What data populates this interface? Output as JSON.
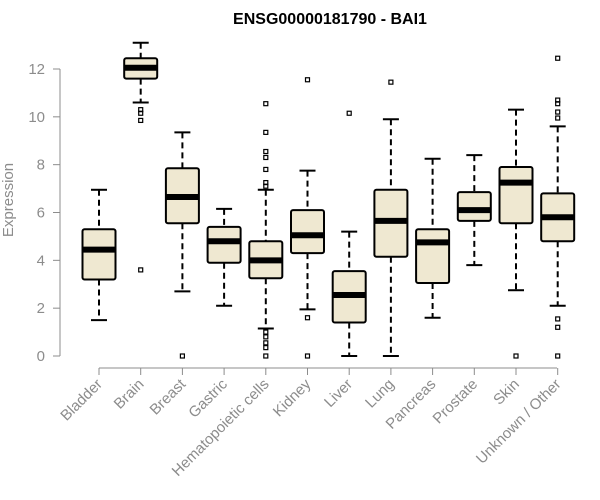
{
  "chart_data": {
    "type": "boxplot",
    "title": "ENSG00000181790 - BAI1",
    "xlabel": "",
    "ylabel": "Expression",
    "ylim": [
      0,
      12.8
    ],
    "yticks": [
      0,
      2,
      4,
      6,
      8,
      10,
      12
    ],
    "categories": [
      "Bladder",
      "Brain",
      "Breast",
      "Gastric",
      "Hematopoietic cells",
      "Kidney",
      "Liver",
      "Lung",
      "Pancreas",
      "Prostate",
      "Skin",
      "Unknown / Other"
    ],
    "boxes": [
      {
        "category": "Bladder",
        "min": 1.5,
        "q1": 3.2,
        "median": 4.45,
        "q3": 5.3,
        "max": 6.95,
        "outliers": []
      },
      {
        "category": "Brain",
        "min": 10.6,
        "q1": 11.6,
        "median": 12.05,
        "q3": 12.45,
        "max": 13.1,
        "outliers": [
          10.3,
          10.15,
          9.85,
          3.6
        ]
      },
      {
        "category": "Breast",
        "min": 2.7,
        "q1": 5.55,
        "median": 6.65,
        "q3": 7.85,
        "max": 9.35,
        "outliers": [
          0.0
        ]
      },
      {
        "category": "Gastric",
        "min": 2.1,
        "q1": 3.9,
        "median": 4.8,
        "q3": 5.4,
        "max": 6.15,
        "outliers": []
      },
      {
        "category": "Hematopoietic cells",
        "min": 1.15,
        "q1": 3.25,
        "median": 4.0,
        "q3": 4.8,
        "max": 6.95,
        "outliers": [
          10.55,
          9.35,
          8.55,
          8.3,
          7.8,
          7.25,
          7.1,
          1.0,
          0.8,
          0.55,
          0.35,
          0.0
        ]
      },
      {
        "category": "Kidney",
        "min": 1.95,
        "q1": 4.3,
        "median": 5.05,
        "q3": 6.1,
        "max": 7.75,
        "outliers": [
          11.55,
          1.6,
          0.0
        ]
      },
      {
        "category": "Liver",
        "min": 0.0,
        "q1": 1.4,
        "median": 2.55,
        "q3": 3.55,
        "max": 5.2,
        "outliers": [
          10.15
        ]
      },
      {
        "category": "Lung",
        "min": 0.0,
        "q1": 4.15,
        "median": 5.65,
        "q3": 6.95,
        "max": 9.9,
        "outliers": [
          11.45
        ]
      },
      {
        "category": "Pancreas",
        "min": 1.6,
        "q1": 3.05,
        "median": 4.75,
        "q3": 5.3,
        "max": 8.25,
        "outliers": []
      },
      {
        "category": "Prostate",
        "min": 3.8,
        "q1": 5.65,
        "median": 6.1,
        "q3": 6.85,
        "max": 8.4,
        "outliers": []
      },
      {
        "category": "Skin",
        "min": 2.75,
        "q1": 5.55,
        "median": 7.25,
        "q3": 7.9,
        "max": 10.3,
        "outliers": [
          0.0
        ]
      },
      {
        "category": "Unknown / Other",
        "min": 2.1,
        "q1": 4.8,
        "median": 5.8,
        "q3": 6.8,
        "max": 9.6,
        "outliers": [
          12.45,
          10.7,
          10.55,
          10.2,
          9.95,
          1.55,
          1.2,
          0.0
        ]
      }
    ],
    "colors": {
      "box_fill": "#efe8d1",
      "axis": "#8c8c8c",
      "title": "#000000"
    }
  }
}
